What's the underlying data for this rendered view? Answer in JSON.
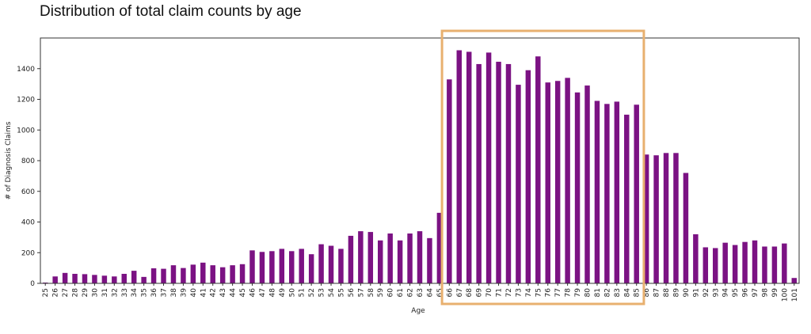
{
  "heading": "Distribution of total claim counts by age",
  "chart_data": {
    "type": "bar",
    "title": "",
    "xlabel": "Age",
    "ylabel": "# of Diagnosis Claims",
    "ylim": [
      0,
      1600
    ],
    "yticks": [
      0,
      200,
      400,
      600,
      800,
      1000,
      1200,
      1400
    ],
    "bar_color": "#7b1283",
    "highlight": {
      "from": "66",
      "to": "85",
      "color": "#e8b06f"
    },
    "categories": [
      "25",
      "26",
      "27",
      "28",
      "29",
      "30",
      "31",
      "32",
      "33",
      "34",
      "35",
      "36",
      "37",
      "38",
      "39",
      "40",
      "41",
      "42",
      "43",
      "44",
      "45",
      "46",
      "47",
      "48",
      "49",
      "50",
      "51",
      "52",
      "53",
      "54",
      "55",
      "56",
      "57",
      "58",
      "59",
      "60",
      "61",
      "62",
      "63",
      "64",
      "65",
      "66",
      "67",
      "68",
      "69",
      "70",
      "71",
      "72",
      "73",
      "74",
      "75",
      "76",
      "77",
      "78",
      "79",
      "80",
      "81",
      "82",
      "83",
      "84",
      "85",
      "86",
      "87",
      "88",
      "89",
      "90",
      "91",
      "92",
      "93",
      "94",
      "95",
      "96",
      "97",
      "98",
      "99",
      "100",
      "101"
    ],
    "values": [
      5,
      45,
      68,
      62,
      60,
      55,
      50,
      45,
      62,
      82,
      42,
      98,
      95,
      118,
      100,
      122,
      135,
      118,
      105,
      118,
      125,
      215,
      205,
      210,
      225,
      210,
      225,
      190,
      255,
      245,
      225,
      310,
      340,
      335,
      280,
      325,
      280,
      325,
      340,
      295,
      460,
      1330,
      1520,
      1510,
      1430,
      1505,
      1445,
      1430,
      1295,
      1390,
      1480,
      1310,
      1320,
      1340,
      1245,
      1290,
      1190,
      1170,
      1185,
      1100,
      1165,
      840,
      835,
      850,
      850,
      720,
      320,
      235,
      230,
      265,
      250,
      270,
      280,
      240,
      240,
      260,
      35
    ]
  }
}
